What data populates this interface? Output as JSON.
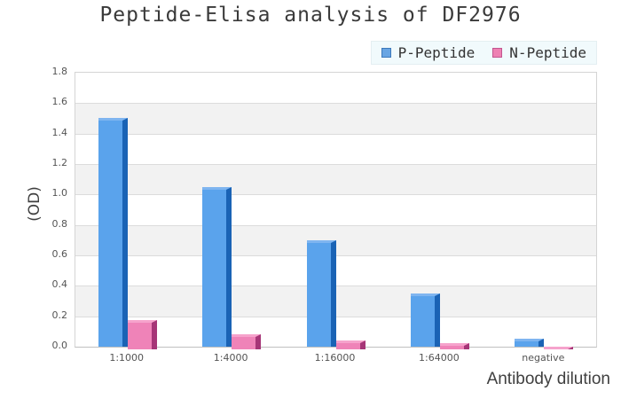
{
  "title": "Peptide-Elisa analysis of DF2976",
  "legend": {
    "background": "#f1fafc",
    "items": [
      {
        "label": "P-Peptide",
        "fill": "#69a5e3",
        "border": "#3d79bb"
      },
      {
        "label": "N-Peptide",
        "fill": "#ee81b3",
        "border": "#c2558f"
      }
    ]
  },
  "chart_data": {
    "type": "bar",
    "title": "Peptide-Elisa analysis of DF2976",
    "xlabel": "Antibody dilution",
    "ylabel": "(OD)",
    "categories": [
      "1:1000",
      "1:4000",
      "1:16000",
      "1:64000",
      "negative"
    ],
    "series": [
      {
        "name": "P-Peptide",
        "values": [
          1.5,
          1.05,
          0.7,
          0.35,
          0.05
        ],
        "face_color": "#5aa3ec",
        "edge_color": "#1a63b5",
        "top_color": "#7fb5f0"
      },
      {
        "name": "N-Peptide",
        "values": [
          0.19,
          0.1,
          0.06,
          0.04,
          0.02
        ],
        "face_color": "#ef83b8",
        "edge_color": "#a63577",
        "top_color": "#f6a3cc"
      }
    ],
    "ylim": [
      0,
      1.8
    ],
    "ytick_step": 0.2,
    "yticks": [
      "0.0",
      "0.2",
      "0.4",
      "0.6",
      "0.8",
      "1.0",
      "1.2",
      "1.4",
      "1.6",
      "1.8"
    ],
    "grid": true,
    "grid_color": "#dcdcdc",
    "band_colors": [
      "#ffffff",
      "#f2f2f2"
    ],
    "legend_position": "top-right"
  }
}
